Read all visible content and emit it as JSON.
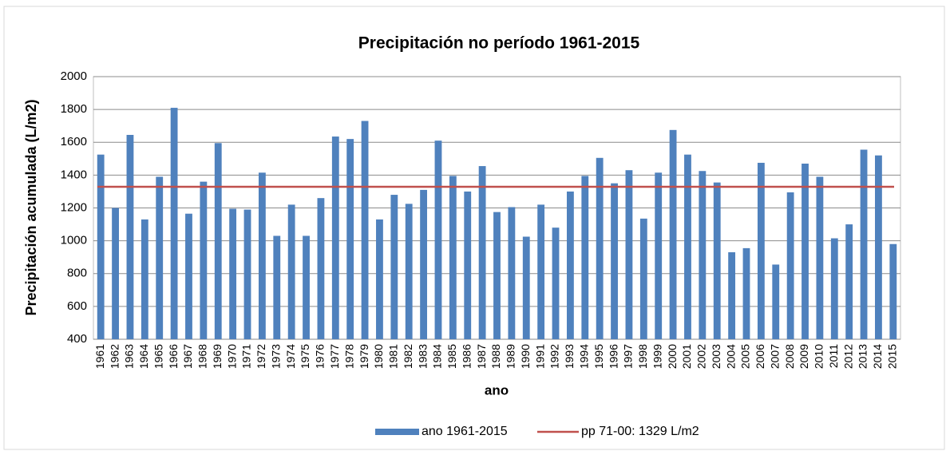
{
  "chart_data": {
    "type": "bar",
    "title": "Precipitación no período 1961-2015",
    "x_label": "ano",
    "y_label": "Precipitación acumulada (L/m2)",
    "categories": [
      "1961",
      "1962",
      "1963",
      "1964",
      "1965",
      "1966",
      "1967",
      "1968",
      "1969",
      "1970",
      "1971",
      "1972",
      "1973",
      "1974",
      "1975",
      "1976",
      "1977",
      "1978",
      "1979",
      "1980",
      "1981",
      "1982",
      "1983",
      "1984",
      "1985",
      "1986",
      "1987",
      "1988",
      "1989",
      "1990",
      "1991",
      "1992",
      "1993",
      "1994",
      "1995",
      "1996",
      "1997",
      "1998",
      "1999",
      "2000",
      "2001",
      "2002",
      "2003",
      "2004",
      "2005",
      "2006",
      "2007",
      "2008",
      "2009",
      "2010",
      "2011",
      "2012",
      "2013",
      "2014",
      "2015"
    ],
    "series": [
      {
        "name": "ano 1961-2015",
        "color": "#4f81bd",
        "values": [
          1525,
          1200,
          1645,
          1130,
          1390,
          1810,
          1165,
          1360,
          1595,
          1195,
          1190,
          1415,
          1030,
          1220,
          1030,
          1260,
          1635,
          1620,
          1730,
          1130,
          1280,
          1225,
          1310,
          1610,
          1395,
          1300,
          1455,
          1175,
          1205,
          1025,
          1220,
          1080,
          1300,
          1395,
          1505,
          1350,
          1430,
          1135,
          1415,
          1675,
          1525,
          1425,
          1355,
          930,
          955,
          1475,
          855,
          1295,
          1470,
          1390,
          1015,
          1100,
          1555,
          1520,
          980
        ]
      }
    ],
    "reference_line": {
      "name": "pp 71-00: 1329 L/m2",
      "value": 1329,
      "color": "#c0504d"
    },
    "ylim": [
      400,
      2000
    ],
    "yticks": [
      400,
      600,
      800,
      1000,
      1200,
      1400,
      1600,
      1800,
      2000
    ],
    "grid": true,
    "legend": "bottom"
  }
}
